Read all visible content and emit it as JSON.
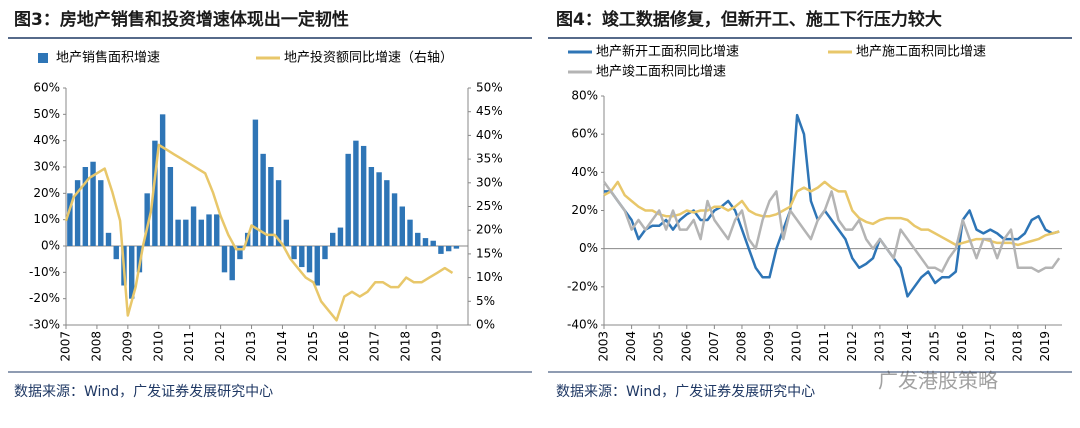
{
  "chart_data": [
    {
      "type": "bar",
      "title": "图3：房地产销售和投资增速体现出一定韧性",
      "source": "数据来源：Wind，广发证券发展研究中心",
      "x": [
        2007.0,
        2007.25,
        2007.5,
        2007.75,
        2008.0,
        2008.25,
        2008.5,
        2008.75,
        2009.0,
        2009.25,
        2009.5,
        2009.75,
        2010.0,
        2010.25,
        2010.5,
        2010.75,
        2011.0,
        2011.25,
        2011.5,
        2011.75,
        2012.0,
        2012.25,
        2012.5,
        2012.75,
        2013.0,
        2013.25,
        2013.5,
        2013.75,
        2014.0,
        2014.25,
        2014.5,
        2014.75,
        2015.0,
        2015.25,
        2015.5,
        2015.75,
        2016.0,
        2016.25,
        2016.5,
        2016.75,
        2017.0,
        2017.25,
        2017.5,
        2017.75,
        2018.0,
        2018.25,
        2018.5,
        2018.75,
        2019.0,
        2019.25,
        2019.5
      ],
      "series": [
        {
          "name": "地产销售面积增速",
          "color": "#2e75b6",
          "type": "bar",
          "values": [
            20,
            25,
            30,
            32,
            25,
            5,
            -5,
            -15,
            -20,
            -10,
            20,
            40,
            50,
            30,
            10,
            10,
            15,
            10,
            12,
            12,
            -10,
            -13,
            -5,
            5,
            48,
            35,
            30,
            25,
            10,
            -5,
            -8,
            -10,
            -15,
            -5,
            5,
            7,
            35,
            40,
            38,
            30,
            28,
            25,
            20,
            15,
            10,
            5,
            3,
            2,
            -3,
            -2,
            -1
          ]
        },
        {
          "name": "地产投资额同比增速（右轴）",
          "color": "#e8c76a",
          "type": "line",
          "axis": "y2",
          "values": [
            22,
            27,
            29,
            31,
            32,
            33,
            28,
            22,
            2,
            8,
            17,
            24,
            38,
            37,
            36,
            35,
            34,
            33,
            32,
            28,
            23,
            19,
            16,
            16,
            21,
            20,
            19,
            19,
            17,
            14,
            12,
            10,
            9,
            5,
            3,
            1,
            6,
            7,
            6,
            7,
            9,
            9,
            8,
            8,
            10,
            9,
            9,
            10,
            11,
            12,
            11
          ]
        }
      ],
      "xlim": [
        2007,
        2020
      ],
      "xticks": [
        2007,
        2008,
        2009,
        2010,
        2011,
        2012,
        2013,
        2014,
        2015,
        2016,
        2017,
        2018,
        2019
      ],
      "ylim": [
        -30,
        60
      ],
      "yticks": [
        {
          "value": -30,
          "label": "-30%"
        },
        {
          "value": -20,
          "label": "-20%"
        },
        {
          "value": -10,
          "label": "-10%"
        },
        {
          "value": 0,
          "label": "0%"
        },
        {
          "value": 10,
          "label": "10%"
        },
        {
          "value": 20,
          "label": "20%"
        },
        {
          "value": 30,
          "label": "30%"
        },
        {
          "value": 40,
          "label": "40%"
        },
        {
          "value": 50,
          "label": "50%"
        },
        {
          "value": 60,
          "label": "60%"
        }
      ],
      "y2lim": [
        0,
        50
      ],
      "y2ticks": [
        {
          "value": 0,
          "label": "0%"
        },
        {
          "value": 5,
          "label": "5%"
        },
        {
          "value": 10,
          "label": "10%"
        },
        {
          "value": 15,
          "label": "15%"
        },
        {
          "value": 20,
          "label": "20%"
        },
        {
          "value": 25,
          "label": "25%"
        },
        {
          "value": 30,
          "label": "30%"
        },
        {
          "value": 35,
          "label": "35%"
        },
        {
          "value": 40,
          "label": "40%"
        },
        {
          "value": 45,
          "label": "45%"
        },
        {
          "value": 50,
          "label": "50%"
        }
      ]
    },
    {
      "type": "line",
      "title": "图4：竣工数据修复，但新开工、施工下行压力较大",
      "source": "数据来源：Wind，广发证券发展研究中心",
      "watermark": "广发港股策略",
      "x": [
        2003.0,
        2003.25,
        2003.5,
        2003.75,
        2004.0,
        2004.25,
        2004.5,
        2004.75,
        2005.0,
        2005.25,
        2005.5,
        2005.75,
        2006.0,
        2006.25,
        2006.5,
        2006.75,
        2007.0,
        2007.25,
        2007.5,
        2007.75,
        2008.0,
        2008.25,
        2008.5,
        2008.75,
        2009.0,
        2009.25,
        2009.5,
        2009.75,
        2010.0,
        2010.25,
        2010.5,
        2010.75,
        2011.0,
        2011.25,
        2011.5,
        2011.75,
        2012.0,
        2012.25,
        2012.5,
        2012.75,
        2013.0,
        2013.25,
        2013.5,
        2013.75,
        2014.0,
        2014.25,
        2014.5,
        2014.75,
        2015.0,
        2015.25,
        2015.5,
        2015.75,
        2016.0,
        2016.25,
        2016.5,
        2016.75,
        2017.0,
        2017.25,
        2017.5,
        2017.75,
        2018.0,
        2018.25,
        2018.5,
        2018.75,
        2019.0,
        2019.25,
        2019.5
      ],
      "series": [
        {
          "name": "地产新开工面积同比增速",
          "color": "#2e75b6",
          "values": [
            30,
            30,
            25,
            20,
            15,
            5,
            10,
            12,
            12,
            15,
            10,
            15,
            18,
            20,
            15,
            15,
            20,
            22,
            25,
            20,
            10,
            0,
            -10,
            -15,
            -15,
            0,
            10,
            20,
            70,
            60,
            25,
            15,
            20,
            15,
            10,
            5,
            -5,
            -10,
            -8,
            -5,
            5,
            0,
            -5,
            -10,
            -25,
            -20,
            -15,
            -12,
            -18,
            -15,
            -15,
            -12,
            15,
            20,
            10,
            8,
            10,
            8,
            5,
            5,
            5,
            8,
            15,
            17,
            10,
            8,
            9
          ]
        },
        {
          "name": "地产施工面积同比增速",
          "color": "#e8c76a",
          "values": [
            28,
            30,
            35,
            28,
            25,
            22,
            20,
            20,
            18,
            17,
            17,
            18,
            20,
            19,
            20,
            20,
            22,
            22,
            20,
            22,
            25,
            20,
            18,
            17,
            17,
            18,
            20,
            22,
            30,
            32,
            30,
            32,
            35,
            32,
            30,
            30,
            20,
            16,
            14,
            13,
            15,
            16,
            16,
            16,
            15,
            12,
            10,
            10,
            8,
            6,
            4,
            2,
            3,
            4,
            5,
            5,
            4,
            3,
            3,
            3,
            2,
            3,
            4,
            5,
            7,
            8,
            9
          ]
        },
        {
          "name": "地产竣工面积同比增速",
          "color": "#b4b4b4",
          "values": [
            35,
            30,
            25,
            20,
            10,
            15,
            10,
            15,
            20,
            10,
            20,
            10,
            10,
            15,
            5,
            25,
            15,
            10,
            5,
            15,
            20,
            5,
            0,
            15,
            25,
            30,
            5,
            20,
            15,
            10,
            5,
            15,
            20,
            30,
            15,
            10,
            10,
            15,
            5,
            0,
            5,
            0,
            -5,
            10,
            5,
            0,
            -5,
            -10,
            -10,
            -12,
            -5,
            0,
            15,
            5,
            -5,
            5,
            5,
            -5,
            5,
            10,
            -10,
            -10,
            -10,
            -12,
            -10,
            -10,
            -5
          ]
        }
      ],
      "xlim": [
        2003,
        2019.6
      ],
      "xticks": [
        2003,
        2004,
        2005,
        2006,
        2007,
        2008,
        2009,
        2010,
        2011,
        2012,
        2013,
        2014,
        2015,
        2016,
        2017,
        2018,
        2019
      ],
      "ylim": [
        -40,
        80
      ],
      "yticks": [
        {
          "value": -40,
          "label": "-40%"
        },
        {
          "value": -20,
          "label": "-20%"
        },
        {
          "value": 0,
          "label": "0%"
        },
        {
          "value": 20,
          "label": "20%"
        },
        {
          "value": 40,
          "label": "40%"
        },
        {
          "value": 60,
          "label": "60%"
        },
        {
          "value": 80,
          "label": "80%"
        }
      ]
    }
  ]
}
